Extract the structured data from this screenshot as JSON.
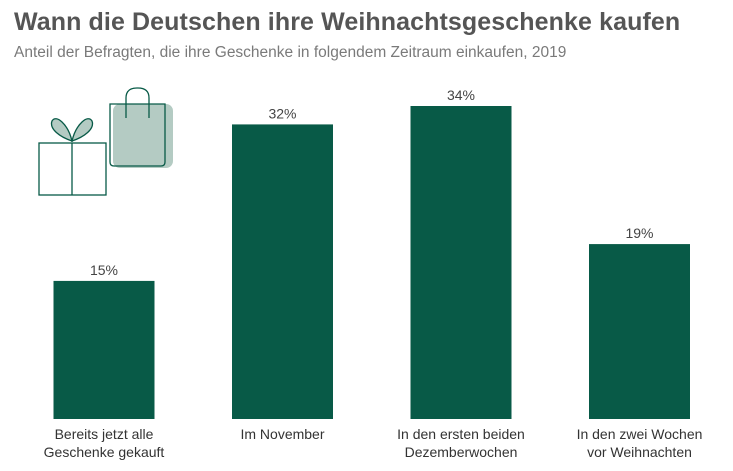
{
  "header": {
    "title": "Wann die Deutschen ihre Weihnachtsgeschenke kaufen",
    "subtitle": "Anteil der Befragten, die ihre Geschenke in folgendem Zeitraum einkaufen, 2019"
  },
  "colors": {
    "bar": "#085a47",
    "illustration_stroke": "#085a47",
    "illustration_fill": "#b4cbc3"
  },
  "illustration": {
    "icons": [
      "gift-box-icon",
      "shopping-bag-icon"
    ]
  },
  "chart_data": {
    "type": "bar",
    "title": "Wann die Deutschen ihre Weihnachtsgeschenke kaufen",
    "subtitle": "Anteil der Befragten, die ihre Geschenke in folgendem Zeitraum einkaufen, 2019",
    "categories": [
      [
        "Bereits jetzt alle",
        "Geschenke gekauft"
      ],
      [
        "Im November"
      ],
      [
        "In den ersten beiden",
        "Dezemberwochen"
      ],
      [
        "In den zwei Wochen",
        "vor Weihnachten"
      ]
    ],
    "values": [
      15,
      32,
      34,
      19
    ],
    "value_labels": [
      "15%",
      "32%",
      "34%",
      "19%"
    ],
    "unit": "%",
    "xlabel": "",
    "ylabel": "",
    "ylim": [
      0,
      34
    ],
    "grid": false,
    "legend": "none"
  }
}
